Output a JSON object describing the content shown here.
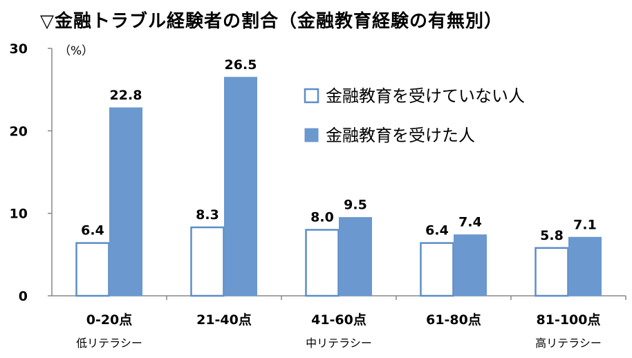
{
  "chart_data": {
    "type": "bar",
    "title": "▽金融トラブル経験者の割合（金融教育経験の有無別）",
    "ylabel": "（%）",
    "ylim": [
      0,
      30
    ],
    "yticks": [
      0,
      10,
      20,
      30
    ],
    "categories": [
      "0-20点",
      "21-40点",
      "41-60点",
      "61-80点",
      "81-100点"
    ],
    "sublabels": [
      "低リテラシー",
      "",
      "中リテラシー",
      "",
      "高リテラシー"
    ],
    "series": [
      {
        "name": "金融教育を受けていない人",
        "values": [
          6.4,
          8.3,
          8.0,
          6.4,
          5.8
        ],
        "fill": "#ffffff",
        "stroke": "#5b8dc9"
      },
      {
        "name": "金融教育を受けた人",
        "values": [
          22.8,
          26.5,
          9.5,
          7.4,
          7.1
        ],
        "fill": "#6a98cf",
        "stroke": "#6a98cf"
      }
    ],
    "legend_position": "upper-right",
    "grid": false
  }
}
